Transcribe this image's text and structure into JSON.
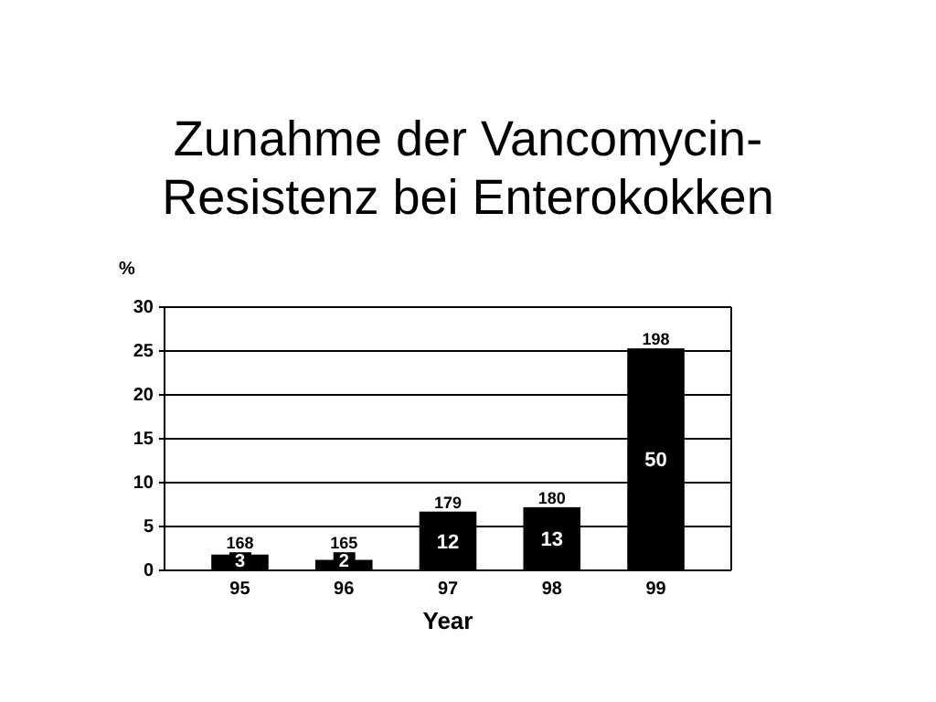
{
  "chart_data": {
    "type": "bar",
    "title": "Zunahme der Vancomycin-\nResistenz bei Enterokokken",
    "xlabel": "Year",
    "ylabel": "%",
    "categories": [
      "95",
      "96",
      "97",
      "98",
      "99"
    ],
    "values": [
      1.8,
      1.2,
      6.7,
      7.2,
      25.3
    ],
    "color": "#000000",
    "annotations": [
      {
        "text": "168",
        "x": "95",
        "y": 1.8
      },
      {
        "text": "165",
        "x": "96",
        "y": 1.2
      },
      {
        "text": "179",
        "x": "97",
        "y": 6.7
      },
      {
        "text": "180",
        "x": "98",
        "y": 7.2
      },
      {
        "text": "198",
        "x": "99",
        "y": 25.3
      },
      "3",
      "2",
      "12",
      "13",
      "50"
    ],
    "ylim": [
      0,
      30
    ],
    "yticks": [
      0,
      5,
      10,
      15,
      20,
      25,
      30
    ],
    "grid": "y"
  }
}
